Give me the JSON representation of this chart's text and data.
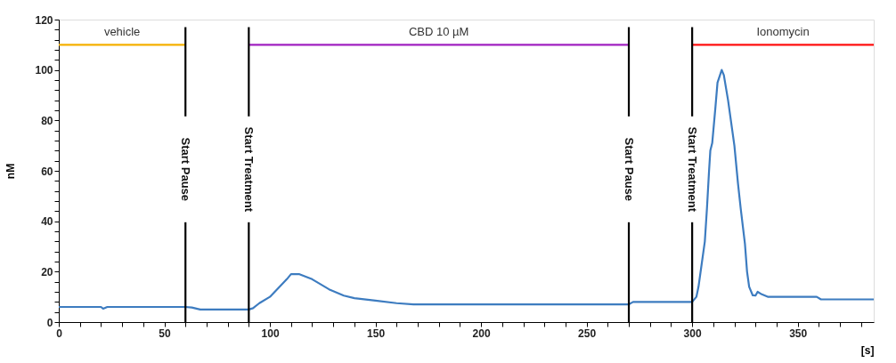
{
  "chart_data": {
    "type": "line",
    "xlabel": "[s]",
    "ylabel": "nM",
    "xlim": [
      0,
      386
    ],
    "ylim": [
      0,
      120
    ],
    "xticks": [
      0,
      {
        "value": 10,
        "label": null
      },
      {
        "value": 20,
        "label": null
      },
      {
        "value": 30,
        "label": null
      },
      {
        "value": 40,
        "label": null
      },
      50,
      {
        "value": 60,
        "label": null
      },
      {
        "value": 70,
        "label": null
      },
      {
        "value": 80,
        "label": null
      },
      {
        "value": 90,
        "label": null
      },
      100,
      {
        "value": 110,
        "label": null
      },
      {
        "value": 120,
        "label": null
      },
      {
        "value": 130,
        "label": null
      },
      {
        "value": 140,
        "label": null
      },
      150,
      {
        "value": 160,
        "label": null
      },
      {
        "value": 170,
        "label": null
      },
      {
        "value": 180,
        "label": null
      },
      {
        "value": 190,
        "label": null
      },
      200,
      {
        "value": 210,
        "label": null
      },
      {
        "value": 220,
        "label": null
      },
      {
        "value": 230,
        "label": null
      },
      {
        "value": 240,
        "label": null
      },
      250,
      {
        "value": 260,
        "label": null
      },
      {
        "value": 270,
        "label": null
      },
      {
        "value": 280,
        "label": null
      },
      {
        "value": 290,
        "label": null
      },
      300,
      {
        "value": 310,
        "label": null
      },
      {
        "value": 320,
        "label": null
      },
      {
        "value": 330,
        "label": null
      },
      {
        "value": 340,
        "label": null
      },
      350,
      {
        "value": 360,
        "label": null
      },
      {
        "value": 370,
        "label": null
      },
      {
        "value": 380,
        "label": null
      }
    ],
    "yticks": [
      0,
      {
        "value": 4,
        "label": null
      },
      {
        "value": 8,
        "label": null
      },
      {
        "value": 12,
        "label": null
      },
      {
        "value": 16,
        "label": null
      },
      20,
      {
        "value": 24,
        "label": null
      },
      {
        "value": 28,
        "label": null
      },
      {
        "value": 32,
        "label": null
      },
      {
        "value": 36,
        "label": null
      },
      40,
      {
        "value": 44,
        "label": null
      },
      {
        "value": 48,
        "label": null
      },
      {
        "value": 52,
        "label": null
      },
      {
        "value": 56,
        "label": null
      },
      60,
      {
        "value": 64,
        "label": null
      },
      {
        "value": 68,
        "label": null
      },
      {
        "value": 72,
        "label": null
      },
      {
        "value": 76,
        "label": null
      },
      80,
      {
        "value": 84,
        "label": null
      },
      {
        "value": 88,
        "label": null
      },
      {
        "value": 92,
        "label": null
      },
      {
        "value": 96,
        "label": null
      },
      100,
      {
        "value": 104,
        "label": null
      },
      {
        "value": 108,
        "label": null
      },
      {
        "value": 112,
        "label": null
      },
      {
        "value": 116,
        "label": null
      },
      120
    ],
    "grid": false,
    "marker": "none",
    "line_style": "solid",
    "series": [
      {
        "color": "#3d7cc0",
        "x": [
          0,
          20,
          21,
          23,
          60,
          63,
          67,
          90,
          92,
          95,
          100,
          104,
          108,
          110,
          114,
          120,
          128,
          135,
          140,
          150,
          160,
          168,
          200,
          270,
          272,
          300,
          302,
          303,
          306,
          307,
          308,
          308.6,
          309.5,
          311,
          312,
          314,
          315,
          317,
          319,
          320,
          321.7,
          323,
          325,
          326,
          327,
          328.7,
          330,
          331,
          333,
          336,
          359,
          361,
          386
        ],
        "values": [
          6,
          6,
          5.3,
          6,
          6,
          5.8,
          5,
          5,
          5.5,
          7.5,
          10,
          13.5,
          17,
          19,
          19,
          17,
          13,
          10.5,
          9.5,
          8.5,
          7.5,
          7,
          7,
          7,
          8,
          8,
          10,
          14,
          32,
          45,
          60,
          68,
          71,
          85,
          95,
          100,
          98,
          88,
          76,
          70,
          55,
          45,
          31,
          20,
          14,
          10.6,
          10.5,
          12,
          11,
          10,
          10,
          9,
          9
        ]
      },
      {
        "name": "vehicle",
        "color": "#f5b000",
        "x": [
          0,
          60
        ],
        "values": [
          110,
          110
        ]
      },
      {
        "name": "CBD 10 µM",
        "color": "#a020c0",
        "x": [
          90,
          270
        ],
        "values": [
          110,
          110
        ]
      },
      {
        "name": "Ionomycin",
        "color": "#ff1010",
        "x": [
          300,
          386
        ],
        "values": [
          110,
          110
        ]
      }
    ],
    "ref_lines": [
      {
        "axis": "x",
        "value": 60,
        "label": "Start Pause",
        "color": "#000000"
      },
      {
        "axis": "x",
        "value": 90,
        "label": "Start Treatment",
        "color": "#000000"
      },
      {
        "axis": "x",
        "value": 270,
        "label": "Start Pause",
        "color": "#000000"
      },
      {
        "axis": "x",
        "value": 300,
        "label": "Start Treatment",
        "color": "#000000"
      }
    ]
  }
}
